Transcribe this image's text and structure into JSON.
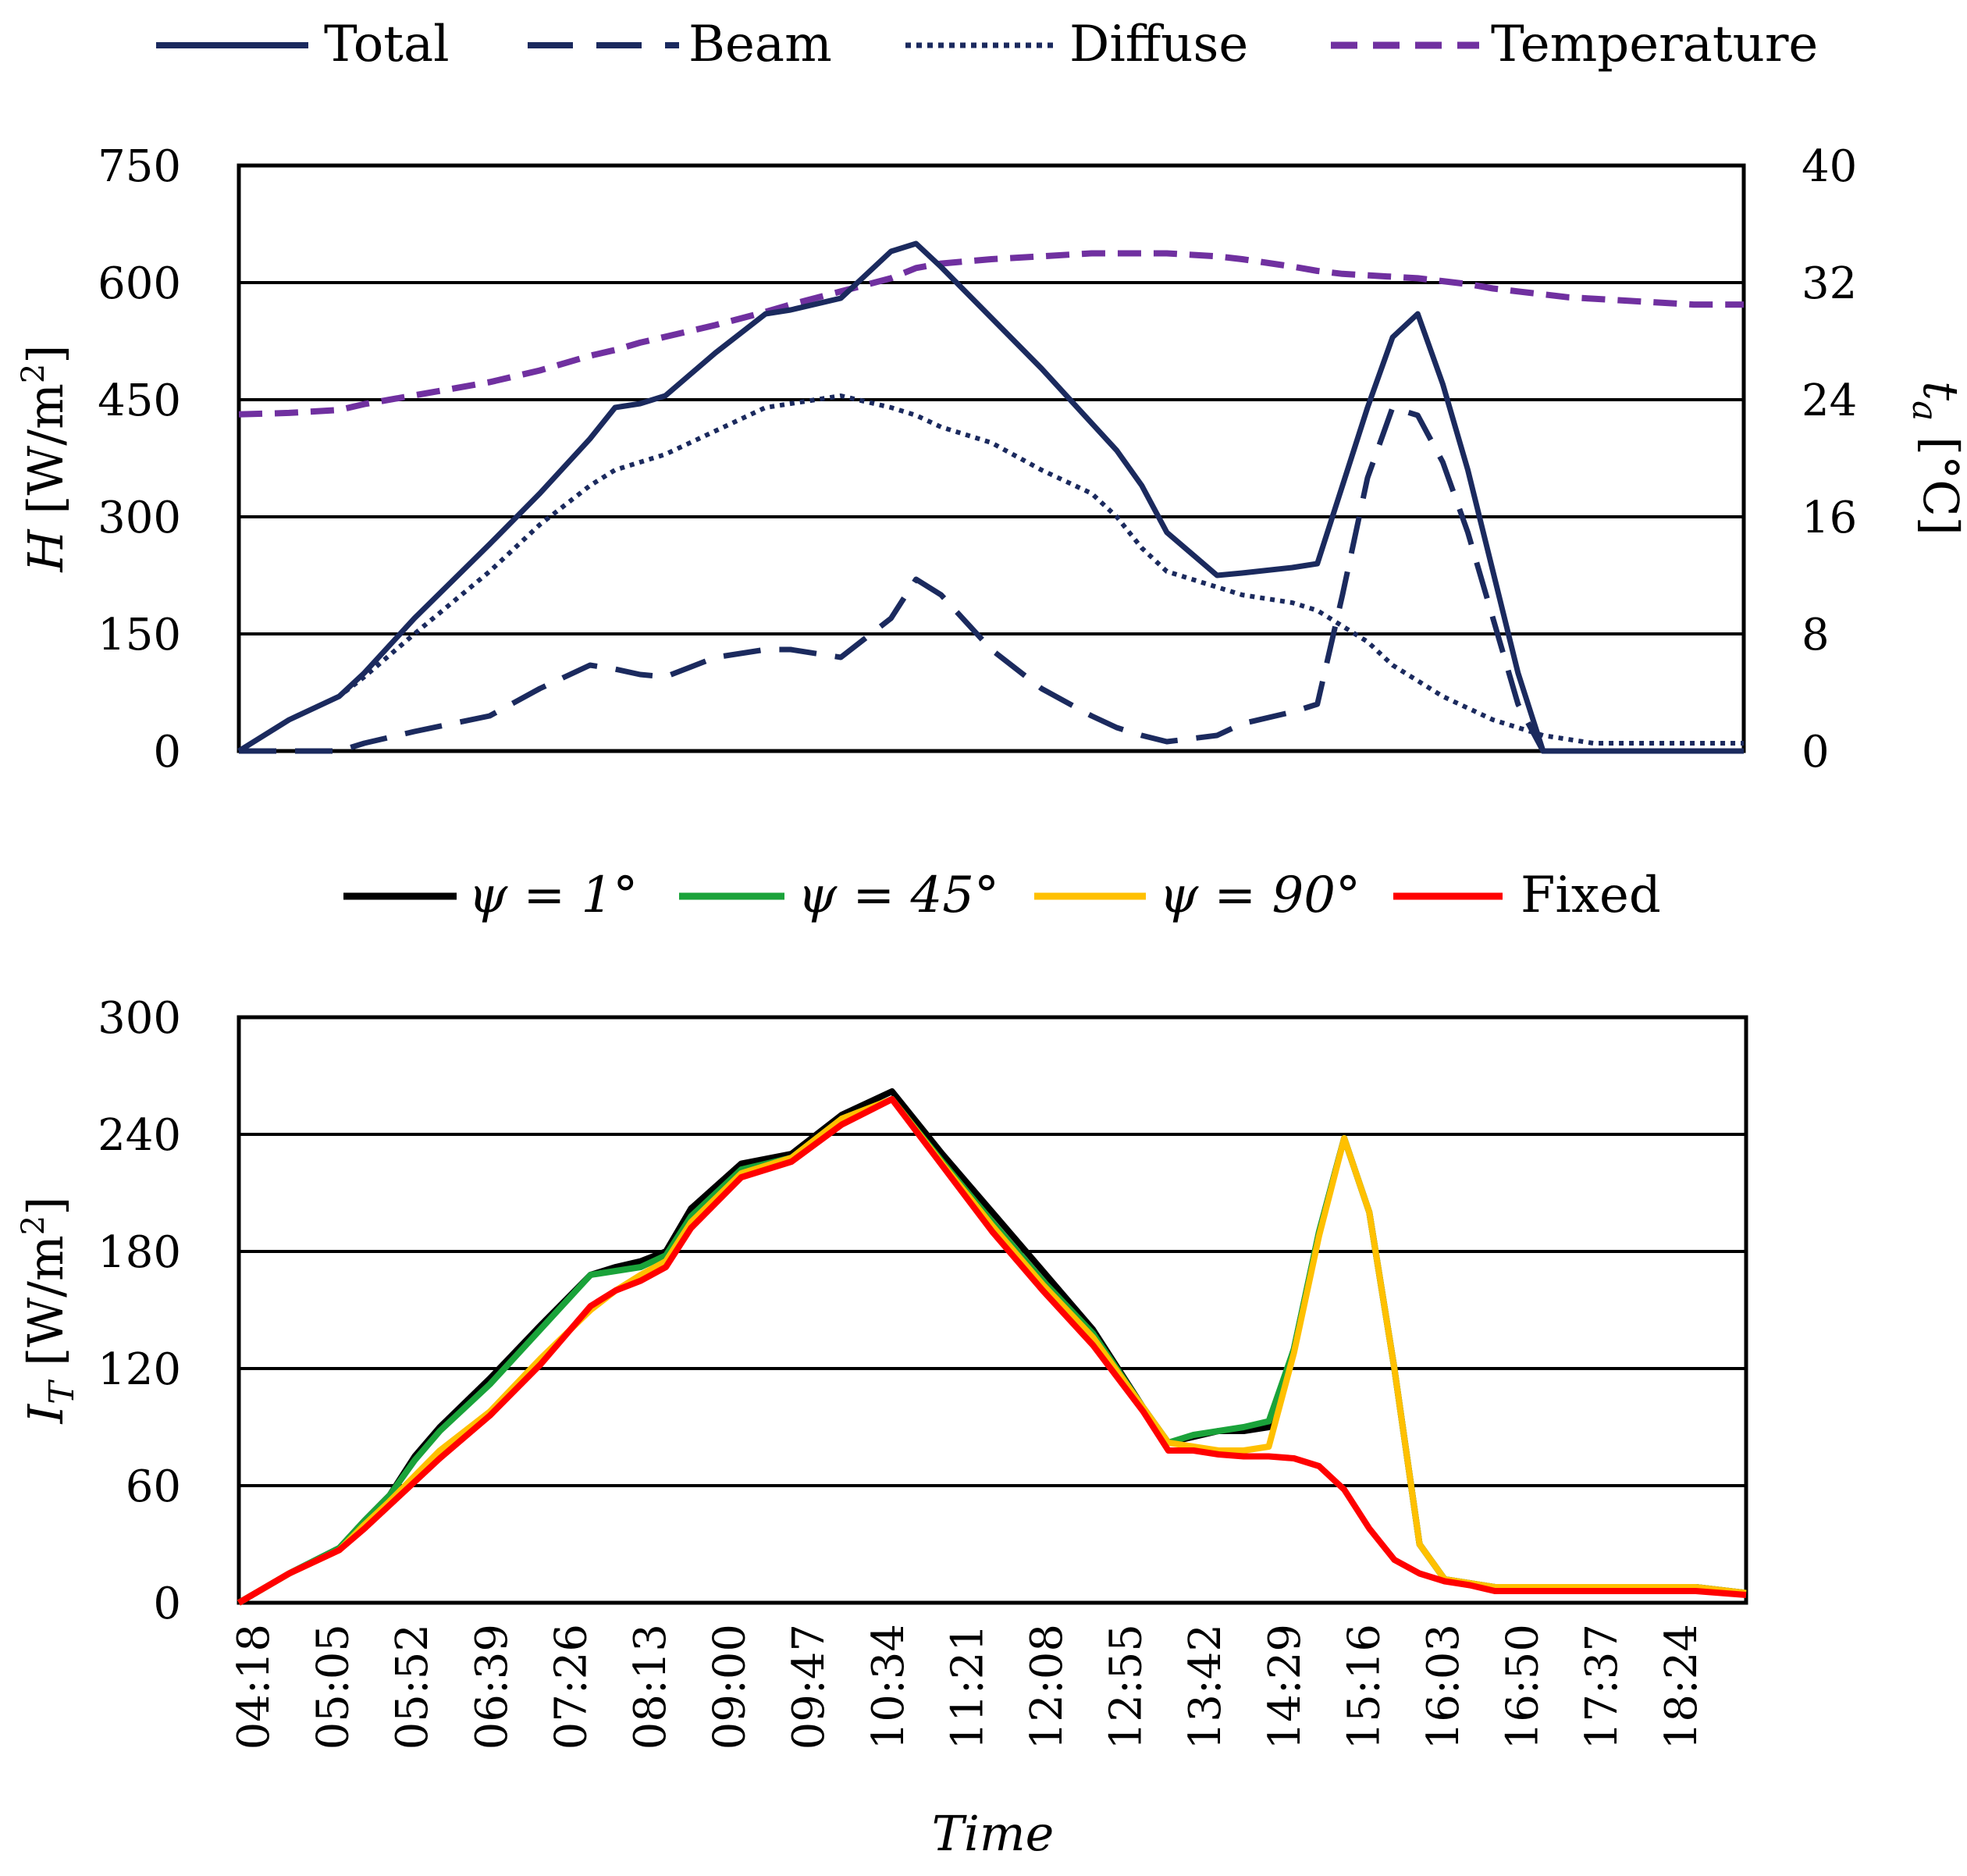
{
  "chart_data": [
    {
      "type": "line",
      "legend": [
        "Total",
        "Beam",
        "Diffuse",
        "Temperature"
      ],
      "legend_position": "top",
      "ylabel_main": "H",
      "ylabel_unit": "[W/m",
      "ylabel_sup": "2",
      "ylabel_close": "]",
      "y2label_main": "t",
      "y2label_sub": "a",
      "y2label_unit": "[°C]",
      "ylim": [
        0,
        750
      ],
      "y2lim": [
        0,
        40
      ],
      "yticks": [
        0,
        150,
        300,
        450,
        600,
        750
      ],
      "y2ticks": [
        0,
        8,
        16,
        24,
        32,
        40
      ],
      "grid": true,
      "colors": {
        "Total": "#1b2a5e",
        "Beam": "#1b2a5e",
        "Diffuse": "#1b2a5e",
        "Temperature": "#7030a0"
      },
      "x": [
        0,
        40,
        80,
        100,
        140,
        200,
        240,
        280,
        300,
        320,
        340,
        380,
        420,
        440,
        480,
        520,
        540,
        560,
        600,
        640,
        680,
        700,
        720,
        740,
        780,
        800,
        840,
        860,
        880,
        900,
        920,
        940,
        960,
        980,
        1000,
        1020,
        1040,
        1060,
        1080,
        1100,
        1120,
        1140,
        1160,
        1200
      ],
      "series": [
        {
          "name": "Total",
          "axis": "left",
          "values": [
            0,
            40,
            70,
            100,
            170,
            265,
            330,
            400,
            440,
            445,
            455,
            510,
            560,
            565,
            580,
            640,
            650,
            620,
            555,
            490,
            420,
            385,
            340,
            280,
            225,
            228,
            235,
            240,
            340,
            440,
            530,
            560,
            470,
            360,
            230,
            100,
            0,
            0,
            0,
            0,
            0,
            0,
            0,
            0
          ]
        },
        {
          "name": "Beam",
          "axis": "left",
          "values": [
            0,
            0,
            0,
            10,
            25,
            45,
            80,
            110,
            105,
            98,
            95,
            120,
            130,
            130,
            120,
            170,
            220,
            200,
            130,
            80,
            45,
            30,
            20,
            12,
            20,
            35,
            50,
            60,
            200,
            350,
            440,
            430,
            370,
            280,
            170,
            60,
            0,
            0,
            0,
            0,
            0,
            0,
            0,
            0
          ]
        },
        {
          "name": "Diffuse",
          "axis": "left",
          "values": [
            0,
            40,
            70,
            95,
            150,
            230,
            290,
            340,
            360,
            370,
            380,
            410,
            440,
            445,
            455,
            440,
            430,
            415,
            395,
            360,
            330,
            300,
            260,
            230,
            210,
            200,
            190,
            180,
            160,
            140,
            110,
            90,
            70,
            55,
            40,
            30,
            20,
            15,
            10,
            10,
            10,
            10,
            10,
            10
          ]
        },
        {
          "name": "Temperature",
          "axis": "right",
          "values": [
            23.0,
            23.1,
            23.3,
            23.7,
            24.3,
            25.2,
            26.0,
            27.0,
            27.4,
            27.9,
            28.3,
            29.1,
            30.0,
            30.5,
            31.4,
            32.3,
            33.0,
            33.3,
            33.6,
            33.8,
            34.0,
            34.0,
            34.0,
            34.0,
            33.8,
            33.6,
            33.1,
            32.8,
            32.6,
            32.5,
            32.4,
            32.3,
            32.1,
            31.9,
            31.6,
            31.4,
            31.2,
            31.0,
            30.9,
            30.8,
            30.7,
            30.6,
            30.5,
            30.5
          ]
        }
      ]
    },
    {
      "type": "line",
      "legend": [
        "ψ = 1°",
        "ψ = 45°",
        "ψ = 90°",
        "Fixed"
      ],
      "legend_position": "top",
      "ylabel_main": "I",
      "ylabel_sub": "T",
      "ylabel_unit": "[W/m",
      "ylabel_sup": "2",
      "ylabel_close": "]",
      "xlabel": "Time",
      "ylim": [
        0,
        300
      ],
      "yticks": [
        0,
        60,
        120,
        180,
        240,
        300
      ],
      "xticks": [
        "04:18",
        "05:05",
        "05:52",
        "06:39",
        "07:26",
        "08:13",
        "09:00",
        "09:47",
        "10:34",
        "11:21",
        "12:08",
        "12:55",
        "13:42",
        "14:29",
        "15:16",
        "16:03",
        "16:50",
        "17:37",
        "18:24"
      ],
      "grid": true,
      "colors": {
        "ψ = 1°": "#000000",
        "ψ = 45°": "#1aa33a",
        "ψ = 90°": "#ffc000",
        "Fixed": "#ff0000"
      },
      "x": [
        0,
        40,
        80,
        100,
        120,
        140,
        160,
        200,
        240,
        280,
        300,
        320,
        340,
        360,
        400,
        440,
        480,
        520,
        560,
        600,
        640,
        680,
        720,
        740,
        760,
        780,
        800,
        820,
        840,
        860,
        880,
        900,
        920,
        940,
        960,
        980,
        1000,
        1020,
        1040,
        1060,
        1080,
        1100,
        1120,
        1140,
        1160,
        1200
      ],
      "series": [
        {
          "name": "ψ = 1°",
          "values": [
            0,
            15,
            28,
            42,
            55,
            75,
            90,
            115,
            142,
            168,
            172,
            175,
            180,
            202,
            225,
            230,
            250,
            262,
            230,
            200,
            170,
            140,
            100,
            82,
            85,
            88,
            88,
            90,
            130,
            190,
            238,
            200,
            120,
            30,
            12,
            10,
            8,
            8,
            8,
            8,
            8,
            8,
            8,
            8,
            8,
            5
          ]
        },
        {
          "name": "ψ = 45°",
          "values": [
            0,
            15,
            28,
            42,
            55,
            73,
            88,
            112,
            140,
            168,
            170,
            172,
            178,
            198,
            222,
            228,
            248,
            258,
            226,
            195,
            165,
            138,
            100,
            82,
            86,
            88,
            90,
            93,
            130,
            190,
            238,
            200,
            120,
            30,
            12,
            10,
            8,
            8,
            8,
            8,
            8,
            8,
            8,
            8,
            8,
            5
          ]
        },
        {
          "name": "ψ = 90°",
          "values": [
            0,
            15,
            27,
            40,
            52,
            65,
            78,
            98,
            125,
            150,
            160,
            168,
            175,
            195,
            220,
            228,
            248,
            258,
            225,
            193,
            163,
            136,
            100,
            82,
            80,
            78,
            78,
            80,
            128,
            188,
            238,
            200,
            120,
            30,
            12,
            10,
            8,
            8,
            8,
            8,
            8,
            8,
            8,
            8,
            8,
            5
          ]
        },
        {
          "name": "Fixed",
          "values": [
            0,
            15,
            27,
            38,
            50,
            62,
            74,
            96,
            122,
            152,
            160,
            165,
            172,
            192,
            218,
            226,
            245,
            258,
            224,
            190,
            160,
            132,
            98,
            78,
            78,
            76,
            75,
            75,
            74,
            70,
            58,
            38,
            22,
            15,
            11,
            9,
            6,
            6,
            6,
            6,
            6,
            6,
            6,
            6,
            6,
            4
          ]
        }
      ]
    }
  ]
}
